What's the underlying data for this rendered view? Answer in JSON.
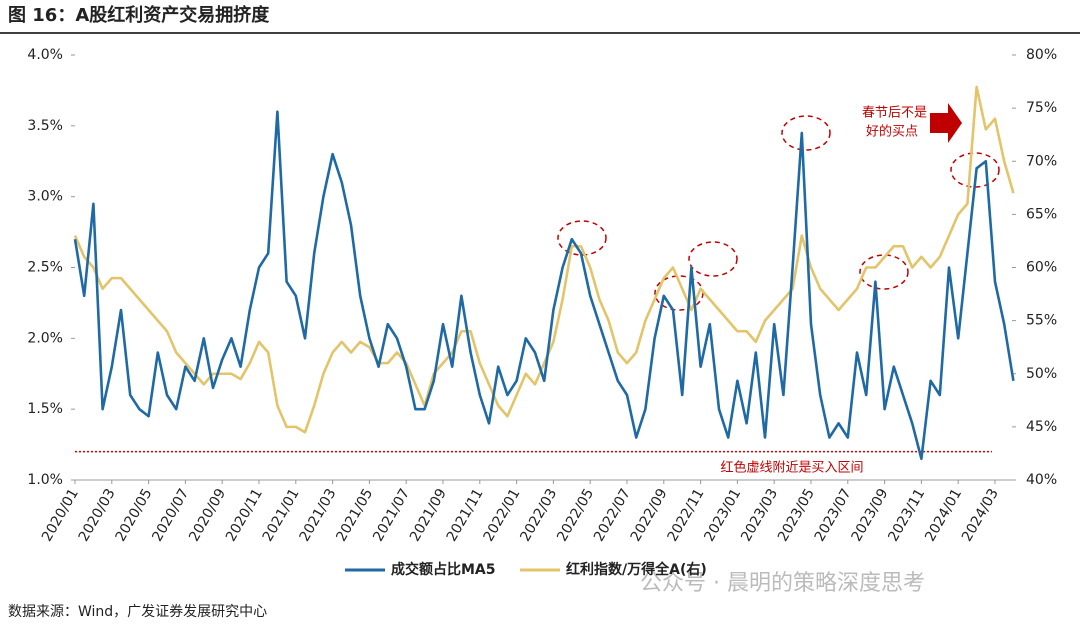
{
  "chart_data": {
    "type": "line",
    "title": "图 16：A股红利资产交易拥挤度",
    "source": "数据来源：Wind，广发证券发展研究中心",
    "watermark": "公众号 · 晨明的策略深度思考",
    "annotations": [
      "春节后不是",
      "好的买点",
      "红色虚线附近是买入区间"
    ],
    "reference_line": {
      "value": 1.2,
      "color": "#e00000"
    },
    "categories": [
      "2020/01",
      null,
      null,
      null,
      "2020/03",
      null,
      null,
      null,
      "2020/05",
      null,
      null,
      null,
      "2020/07",
      null,
      null,
      null,
      "2020/09",
      null,
      null,
      null,
      "2020/11",
      null,
      null,
      null,
      "2021/01",
      null,
      null,
      null,
      "2021/03",
      null,
      null,
      null,
      "2021/05",
      null,
      null,
      null,
      "2021/07",
      null,
      null,
      null,
      "2021/09",
      null,
      null,
      null,
      "2021/11",
      null,
      null,
      null,
      "2022/01",
      null,
      null,
      null,
      "2022/03",
      null,
      null,
      null,
      "2022/05",
      null,
      null,
      null,
      "2022/07",
      null,
      null,
      null,
      "2022/09",
      null,
      null,
      null,
      "2022/11",
      null,
      null,
      null,
      "2023/01",
      null,
      null,
      null,
      "2023/03",
      null,
      null,
      null,
      "2023/05",
      null,
      null,
      null,
      "2023/07",
      null,
      null,
      null,
      "2023/09",
      null,
      null,
      null,
      "2023/11",
      null,
      null,
      null,
      "2024/01",
      null,
      null,
      null,
      "2024/03",
      null,
      null
    ],
    "series": [
      {
        "name": "成交额占比MA5",
        "color": "#1f6aa5",
        "axis": "y",
        "values": [
          2.7,
          2.3,
          2.95,
          1.5,
          1.8,
          2.2,
          1.6,
          1.5,
          1.45,
          1.9,
          1.6,
          1.5,
          1.8,
          1.7,
          2.0,
          1.65,
          1.85,
          2.0,
          1.8,
          2.2,
          2.5,
          2.6,
          3.6,
          2.4,
          2.3,
          2.0,
          2.6,
          3.0,
          3.3,
          3.1,
          2.8,
          2.3,
          2.0,
          1.8,
          2.1,
          2.0,
          1.8,
          1.5,
          1.5,
          1.7,
          2.1,
          1.8,
          2.3,
          1.9,
          1.6,
          1.4,
          1.8,
          1.6,
          1.7,
          2.0,
          1.9,
          1.7,
          2.2,
          2.5,
          2.7,
          2.6,
          2.3,
          2.1,
          1.9,
          1.7,
          1.6,
          1.3,
          1.5,
          2.0,
          2.3,
          2.2,
          1.6,
          2.5,
          1.8,
          2.1,
          1.5,
          1.3,
          1.7,
          1.4,
          1.9,
          1.3,
          2.1,
          1.6,
          2.5,
          3.45,
          2.1,
          1.6,
          1.3,
          1.4,
          1.3,
          1.9,
          1.6,
          2.4,
          1.5,
          1.8,
          1.6,
          1.4,
          1.15,
          1.7,
          1.6,
          2.5,
          2.0,
          2.6,
          3.2,
          3.25,
          2.4,
          2.1,
          1.7
        ]
      },
      {
        "name": "红利指数/万得全A(右)",
        "color": "#e3c46a",
        "axis": "y2",
        "values": [
          63,
          61,
          60,
          58,
          59,
          59,
          58,
          57,
          56,
          55,
          54,
          52,
          51,
          50,
          49,
          50,
          50,
          50,
          49.5,
          51,
          53,
          52,
          47,
          45,
          45,
          44.5,
          47,
          50,
          52,
          53,
          52,
          53,
          52.5,
          51,
          51,
          52,
          51,
          49,
          47,
          50,
          51,
          52,
          54,
          54,
          51,
          49,
          47,
          46,
          48,
          50,
          49,
          51,
          53,
          57,
          62,
          62,
          60,
          57,
          55,
          52,
          51,
          52,
          55,
          57,
          59,
          60,
          58,
          56,
          58,
          57,
          56,
          55,
          54,
          54,
          53,
          55,
          56,
          57,
          58,
          63,
          60,
          58,
          57,
          56,
          57,
          58,
          60,
          60,
          61,
          62,
          62,
          60,
          61,
          60,
          61,
          63,
          65,
          66,
          77,
          73,
          74,
          70,
          67
        ]
      }
    ],
    "ylim": [
      1.0,
      4.0
    ],
    "yticks": [
      {
        "value": 1.0,
        "label": "1.0%"
      },
      {
        "value": 1.5,
        "label": "1.5%"
      },
      {
        "value": 2.0,
        "label": "2.0%"
      },
      {
        "value": 2.5,
        "label": "2.5%"
      },
      {
        "value": 3.0,
        "label": "3.0%"
      },
      {
        "value": 3.5,
        "label": "3.5%"
      },
      {
        "value": 4.0,
        "label": "4.0%"
      }
    ],
    "y2lim": [
      40,
      80
    ],
    "y2ticks": [
      {
        "value": 40,
        "label": "40%"
      },
      {
        "value": 45,
        "label": "45%"
      },
      {
        "value": 50,
        "label": "50%"
      },
      {
        "value": 55,
        "label": "55%"
      },
      {
        "value": 60,
        "label": "60%"
      },
      {
        "value": 65,
        "label": "65%"
      },
      {
        "value": 70,
        "label": "70%"
      },
      {
        "value": 75,
        "label": "75%"
      },
      {
        "value": 80,
        "label": "80%"
      }
    ],
    "legend": "bottom"
  }
}
